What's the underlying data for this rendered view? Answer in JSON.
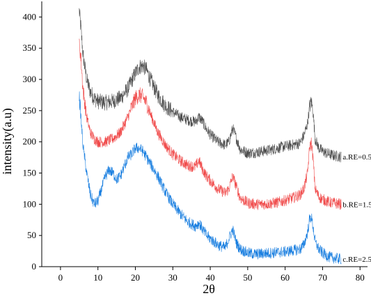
{
  "chart_data": {
    "type": "line",
    "title": "",
    "xlabel": "2θ",
    "ylabel": "intensity(a.u)",
    "xlim": [
      -5,
      82
    ],
    "ylim": [
      0,
      425
    ],
    "x_ticks": [
      0,
      10,
      20,
      30,
      40,
      50,
      60,
      70,
      80
    ],
    "y_ticks": [
      0,
      50,
      100,
      150,
      200,
      250,
      300,
      350,
      400
    ],
    "grid": false,
    "legend": "inline labels at right end of each curve",
    "series": [
      {
        "name": "a.RE=0.5",
        "color": "#4d4d4d",
        "x": [
          5,
          5.5,
          6,
          7,
          8,
          9,
          10,
          12,
          14,
          16,
          18,
          20,
          21,
          22,
          23,
          24,
          26,
          28,
          30,
          32,
          34,
          36,
          37,
          38,
          39,
          40,
          42,
          44,
          45,
          46,
          47,
          48,
          50,
          52,
          54,
          56,
          58,
          60,
          62,
          64,
          65,
          66,
          66.5,
          67,
          67.5,
          68,
          69,
          70,
          71,
          72,
          73,
          74,
          75
        ],
        "y": [
          410,
          380,
          340,
          300,
          280,
          270,
          265,
          263,
          265,
          270,
          285,
          310,
          320,
          322,
          315,
          300,
          275,
          258,
          248,
          240,
          235,
          232,
          240,
          232,
          220,
          212,
          200,
          195,
          200,
          222,
          205,
          188,
          182,
          183,
          185,
          187,
          190,
          193,
          195,
          198,
          210,
          230,
          255,
          265,
          245,
          205,
          190,
          185,
          182,
          180,
          178,
          177,
          176
        ]
      },
      {
        "name": "b.RE=1.5",
        "color": "#f04a4a",
        "x": [
          5,
          5.5,
          6,
          7,
          8,
          9,
          10,
          12,
          14,
          16,
          18,
          20,
          21,
          22,
          23,
          24,
          26,
          28,
          30,
          32,
          34,
          36,
          37,
          38,
          39,
          40,
          42,
          44,
          45,
          46,
          47,
          48,
          50,
          52,
          54,
          56,
          58,
          60,
          62,
          64,
          65,
          66,
          66.5,
          67,
          67.5,
          68,
          69,
          70,
          71,
          72,
          73,
          74,
          75
        ],
        "y": [
          360,
          330,
          285,
          240,
          215,
          205,
          200,
          200,
          205,
          215,
          240,
          270,
          275,
          272,
          262,
          245,
          215,
          195,
          180,
          170,
          162,
          160,
          170,
          155,
          145,
          138,
          125,
          118,
          125,
          145,
          128,
          110,
          102,
          100,
          100,
          101,
          103,
          106,
          110,
          115,
          125,
          150,
          190,
          200,
          170,
          125,
          112,
          108,
          105,
          103,
          102,
          101,
          100
        ]
      },
      {
        "name": "c.RE=2.5",
        "color": "#1a7fe0",
        "x": [
          5,
          5.5,
          6,
          7,
          8,
          9,
          10,
          11,
          12,
          13,
          14,
          15,
          16,
          17,
          18,
          19,
          20,
          21,
          22,
          23,
          24,
          26,
          28,
          30,
          32,
          34,
          36,
          37,
          38,
          39,
          40,
          42,
          44,
          45,
          46,
          47,
          48,
          50,
          52,
          54,
          56,
          58,
          60,
          62,
          64,
          65,
          66,
          66.5,
          67,
          67.5,
          68,
          69,
          70,
          71,
          72,
          73,
          74,
          75
        ],
        "y": [
          275,
          235,
          195,
          150,
          115,
          100,
          105,
          125,
          145,
          155,
          150,
          140,
          145,
          160,
          175,
          180,
          190,
          190,
          185,
          175,
          165,
          145,
          120,
          100,
          85,
          72,
          65,
          70,
          60,
          50,
          45,
          35,
          30,
          45,
          60,
          38,
          28,
          22,
          20,
          21,
          22,
          23,
          24,
          26,
          28,
          35,
          55,
          75,
          80,
          62,
          40,
          28,
          22,
          18,
          15,
          14,
          13,
          12
        ]
      }
    ]
  }
}
